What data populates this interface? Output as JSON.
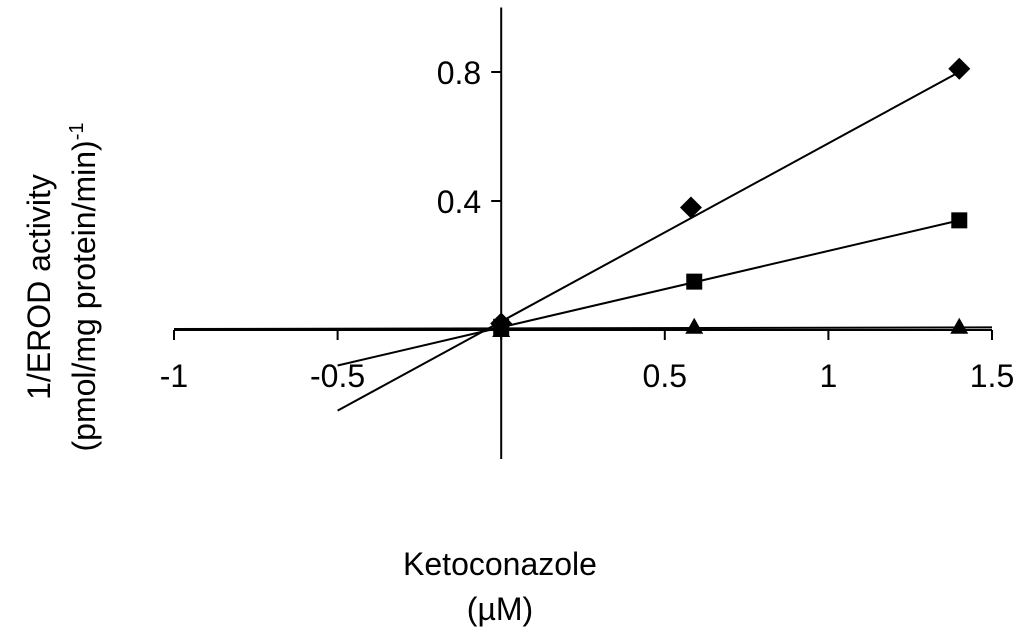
{
  "chart_data": {
    "type": "scatter",
    "title": "",
    "xlabel": "Ketoconazole",
    "xlabel_unit": "(µM)",
    "ylabel": "1/EROD activity",
    "ylabel_unit": "(pmol/mg protein/min)",
    "ylabel_unit_exponent": "-1",
    "xlim": [
      -1,
      1.5
    ],
    "ylim": [
      -0.4,
      1.0
    ],
    "x_ticks": [
      -1,
      -0.5,
      0,
      0.5,
      1,
      1.5
    ],
    "x_tick_labels": [
      "-1",
      "-0.5",
      "",
      "0.5",
      "1",
      "1.5"
    ],
    "y_ticks": [
      0.4,
      0.8
    ],
    "y_tick_labels": [
      "0.4",
      "0.8"
    ],
    "grid": false,
    "legend": "none",
    "series": [
      {
        "marker": "diamond",
        "x": [
          0,
          0.58,
          1.4
        ],
        "y": [
          0.02,
          0.38,
          0.81
        ],
        "fit_line": {
          "x": [
            -0.5,
            1.4
          ],
          "y": [
            -0.25,
            0.8
          ]
        }
      },
      {
        "marker": "square",
        "x": [
          0,
          0.59,
          1.4
        ],
        "y": [
          0.01,
          0.15,
          0.34
        ],
        "fit_line": {
          "x": [
            -0.5,
            1.4
          ],
          "y": [
            -0.11,
            0.34
          ]
        }
      },
      {
        "marker": "triangle",
        "x": [
          0,
          0.59,
          1.4
        ],
        "y": [
          0.0,
          0.01,
          0.01
        ],
        "fit_line": {
          "x": [
            -1,
            1.5
          ],
          "y": [
            0.003,
            0.008
          ]
        }
      }
    ]
  }
}
